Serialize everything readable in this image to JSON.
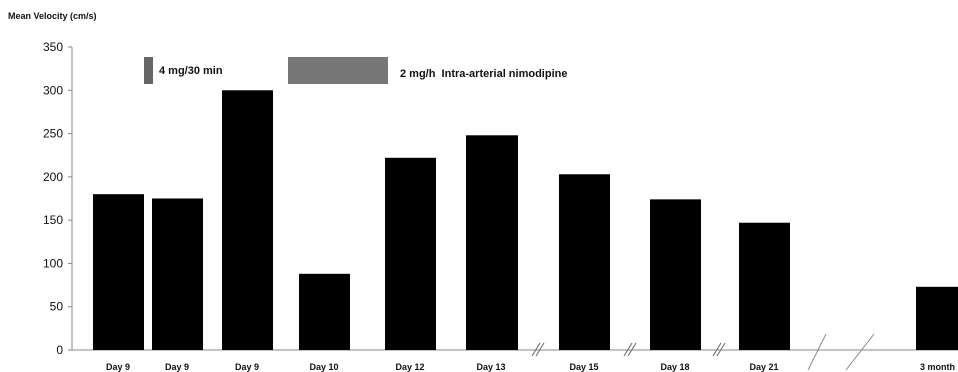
{
  "chart_data": {
    "type": "bar",
    "title": "",
    "ylabel": "Mean Velocity  (cm/s)",
    "xlabel": "",
    "ylim": [
      0,
      350
    ],
    "yticks": [
      0,
      50,
      100,
      150,
      200,
      250,
      300,
      350
    ],
    "categories": [
      "Day 9",
      "Day 9",
      "Day 9",
      "Day 10",
      "Day 12",
      "Day 13",
      "Day 15",
      "Day 18",
      "Day 21",
      "3 month"
    ],
    "values": [
      180,
      175,
      300,
      88,
      222,
      248,
      203,
      174,
      147,
      73
    ],
    "bar_color": "#000000",
    "axis_breaks": [
      "between Day 13 and Day 15",
      "between Day 15 and Day 18",
      "between Day 18 and Day 21",
      "between Day 21 and 3 month"
    ],
    "annotations": [
      {
        "label": "4 mg/30 min",
        "color": "#666666"
      },
      {
        "label": "2 mg/h  Intra-arterial nimodipine",
        "color": "#777777"
      }
    ],
    "grid": false,
    "legend": "none"
  }
}
